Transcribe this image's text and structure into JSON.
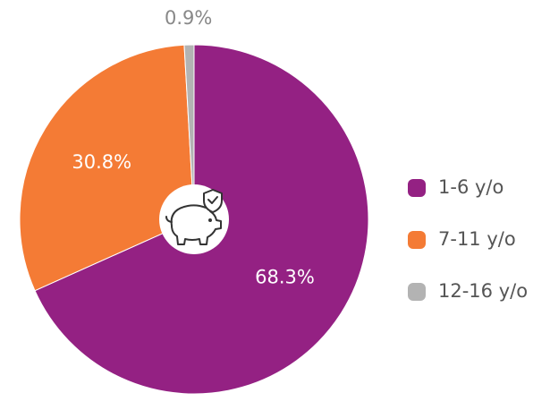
{
  "chart_data": {
    "type": "pie",
    "categories": [
      "1-6 y/o",
      "7-11 y/o",
      "12-16 y/o"
    ],
    "values": [
      68.3,
      30.8,
      0.9
    ],
    "value_labels": [
      "68.3%",
      "30.8%",
      "0.9%"
    ],
    "colors": [
      "#942183",
      "#f47b35",
      "#b3b3b3"
    ],
    "legend": "right"
  }
}
